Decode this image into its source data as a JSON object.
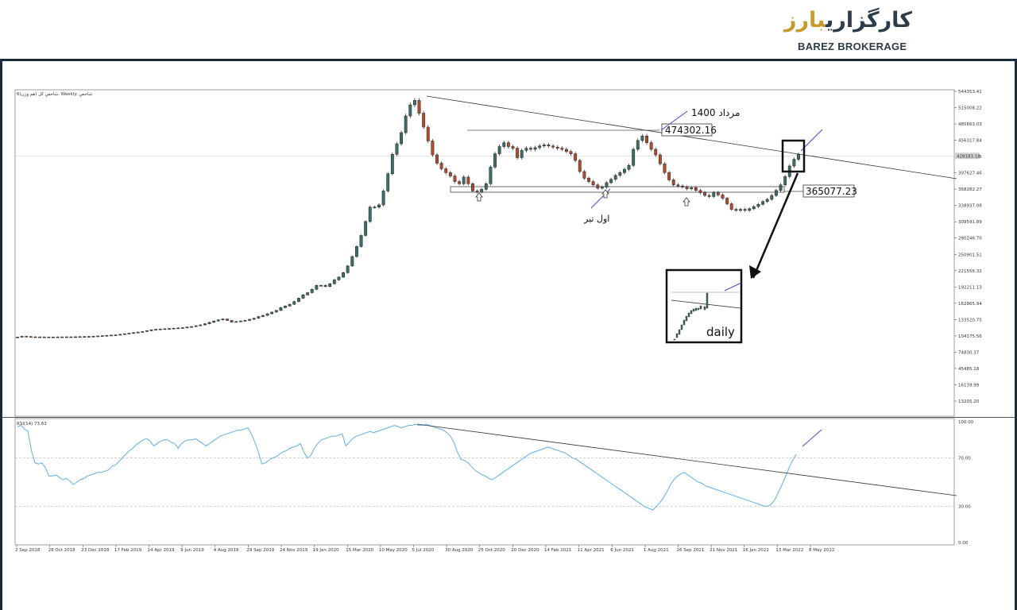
{
  "logo": {
    "fa_main": "کارگزاری",
    "fa_accent": "بارز",
    "en": "BAREZ BROKERAGE"
  },
  "colors": {
    "up": "#3d6e6b",
    "down": "#b54b2a",
    "rsi": "#5fb0e6",
    "frame": "#1b2a3b",
    "grid": "#c8c8c8"
  },
  "chart_data": [
    {
      "type": "candlestick",
      "header": "شاخص کل (هم وزن)6, Weekly: شاخص",
      "y_ticks": [
        "544353.41",
        "515008.22",
        "485663.03",
        "456317.84",
        "426972.65",
        "397627.46",
        "368282.27",
        "338937.08",
        "309591.89",
        "280246.70",
        "250901.51",
        "221556.32",
        "192211.13",
        "162865.94",
        "133520.75",
        "104175.56",
        "74830.37",
        "45485.18",
        "16139.99",
        "13205.20"
      ],
      "ylim": [
        13205.2,
        544353.41
      ],
      "current_price": "428183.18",
      "x_ticks": [
        "2 Sep 2018",
        "28 Oct 2018",
        "23 Dec 2018",
        "17 Feb 2019",
        "14 Apr 2019",
        "9 Jun 2019",
        "4 Aug 2019",
        "29 Sep 2019",
        "24 Nov 2019",
        "19 Jan 2020",
        "15 Mar 2020",
        "10 May 2020",
        "5 Jul 2020",
        "30 Aug 2020",
        "25 Oct 2020",
        "20 Dec 2020",
        "14 Feb 2021",
        "11 Apr 2021",
        "6 Jun 2021",
        "1 Aug 2021",
        "26 Sep 2021",
        "21 Nov 2021",
        "16 Jan 2022",
        "13 Mar 2022",
        "8 May 2022"
      ],
      "closes": [
        102000,
        103500,
        103000,
        102500,
        102400,
        102300,
        102200,
        102200,
        102100,
        102300,
        102400,
        102500,
        102400,
        102600,
        102800,
        103000,
        103200,
        103500,
        104000,
        104500,
        105000,
        105500,
        106000,
        107000,
        108000,
        109000,
        110000,
        111000,
        112000,
        113500,
        115000,
        116000,
        116500,
        117000,
        117500,
        118000,
        118500,
        119000,
        120000,
        121000,
        122500,
        124000,
        126000,
        128500,
        131000,
        133000,
        134500,
        132000,
        129000,
        130000,
        131000,
        132000,
        134000,
        136000,
        139000,
        141000,
        144000,
        147000,
        150000,
        155000,
        158000,
        161000,
        166000,
        172000,
        178000,
        182000,
        188000,
        195000,
        195000,
        193000,
        198000,
        205000,
        210000,
        218000,
        230000,
        247000,
        265000,
        285000,
        310000,
        336000,
        336000,
        340000,
        365000,
        396000,
        431000,
        450000,
        470000,
        500000,
        520000,
        528000,
        505000,
        480000,
        455000,
        430000,
        415000,
        405000,
        398000,
        392000,
        382000,
        378000,
        390000,
        378000,
        365000,
        363000,
        368000,
        378000,
        408000,
        432000,
        445000,
        452000,
        445000,
        442000,
        425000,
        438000,
        442000,
        440000,
        443000,
        446000,
        448000,
        446000,
        444000,
        442000,
        440000,
        436000,
        432000,
        420000,
        400000,
        388000,
        382000,
        376000,
        370000,
        372000,
        380000,
        386000,
        393000,
        398000,
        404000,
        411000,
        440000,
        456000,
        464000,
        452000,
        440000,
        430000,
        414000,
        398000,
        385000,
        376000,
        374000,
        372000,
        369000,
        371000,
        366000,
        362000,
        357000,
        355000,
        362000,
        358000,
        352000,
        342000,
        332000,
        330000,
        332000,
        330000,
        333000,
        337000,
        341000,
        346000,
        350000,
        357000,
        366000,
        376000,
        391000,
        410000,
        422000,
        431000
      ],
      "annotations": {
        "resistance_label": "474302.16",
        "support_label": "365077.23",
        "mordad_label": "مرداد 1400",
        "avval_tir_label": "اول تیر",
        "inset_label": "daily"
      }
    },
    {
      "type": "line",
      "header": "RSI(14) 73.63",
      "y_ticks": [
        "100.00",
        "70.00",
        "30.00",
        "0.00"
      ],
      "ylim": [
        0,
        100
      ],
      "levels": [
        70,
        30
      ],
      "values": [
        96,
        97,
        94,
        92,
        76,
        66,
        65,
        66,
        62,
        55,
        55,
        56,
        54,
        52,
        53,
        51,
        48,
        50,
        52,
        53,
        55,
        56,
        57,
        58,
        58,
        59,
        60,
        63,
        64,
        67,
        70,
        73,
        76,
        78,
        81,
        83,
        85,
        86,
        84,
        80,
        82,
        84,
        85,
        85,
        83,
        82,
        78,
        82,
        84,
        85,
        85,
        86,
        84,
        82,
        80,
        82,
        84,
        86,
        88,
        89,
        90,
        91,
        92,
        93,
        93,
        94,
        95,
        90,
        83,
        75,
        65,
        66,
        68,
        70,
        71,
        73,
        75,
        76,
        78,
        79,
        80,
        82,
        75,
        70,
        72,
        78,
        82,
        85,
        86,
        87,
        88,
        88,
        89,
        90,
        80,
        83,
        86,
        88,
        89,
        90,
        91,
        92,
        91,
        92,
        93,
        94,
        95,
        96,
        97,
        96,
        95,
        96,
        97,
        97,
        98,
        97,
        97,
        98,
        97,
        96,
        95,
        94,
        93,
        91,
        88,
        83,
        75,
        69,
        68,
        66,
        63,
        60,
        58,
        56,
        55,
        53,
        52,
        54,
        56,
        58,
        60,
        62,
        64,
        66,
        68,
        70,
        72,
        74,
        75,
        76,
        77,
        78,
        79,
        78,
        77,
        76,
        75,
        74,
        72,
        70,
        69,
        67,
        65,
        63,
        61,
        59,
        57,
        55,
        53,
        51,
        49,
        47,
        45,
        43,
        41,
        39,
        37,
        35,
        33,
        31,
        29,
        28,
        27,
        30,
        33,
        37,
        42,
        48,
        52,
        55,
        57,
        58,
        56,
        54,
        52,
        50,
        49,
        47,
        46,
        45,
        44,
        43,
        42,
        41,
        40,
        39,
        38,
        37,
        36,
        35,
        34,
        33,
        32,
        31,
        30,
        30,
        32,
        36,
        42,
        48,
        55,
        62,
        68,
        73
      ]
    }
  ]
}
